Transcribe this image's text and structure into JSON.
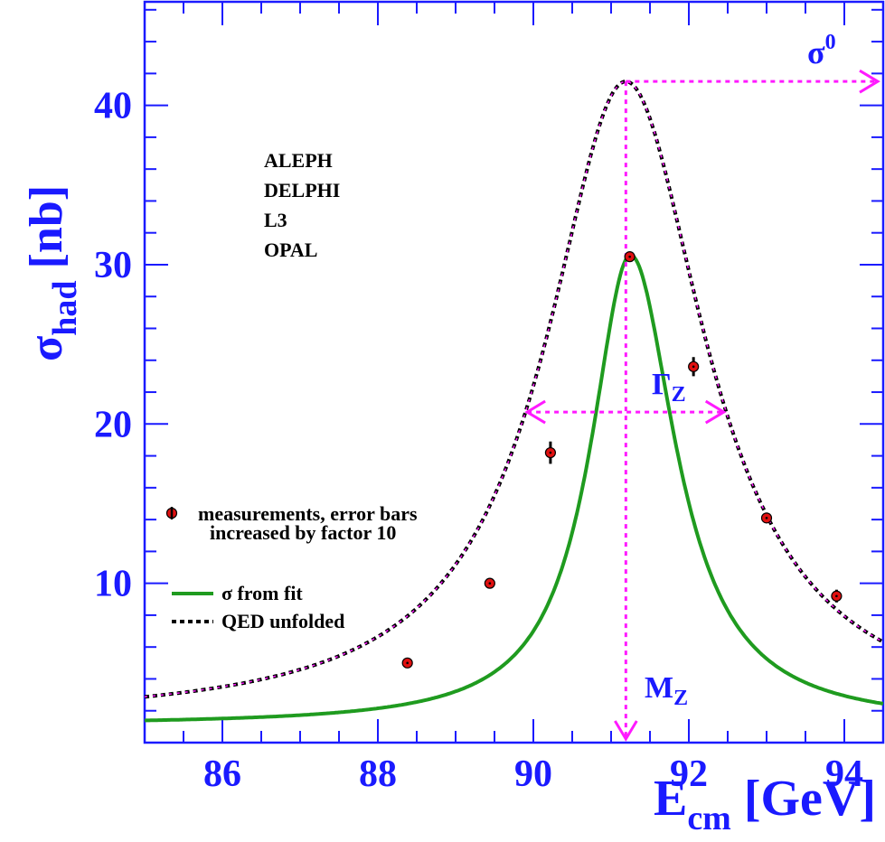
{
  "chart_data": {
    "type": "line",
    "xlabel": {
      "main": "E",
      "sub": "cm",
      "unit": " [GeV]"
    },
    "ylabel": {
      "main": "σ",
      "sub": "had",
      "unit": " [nb]"
    },
    "xlim": [
      85,
      94.5
    ],
    "ylim": [
      0,
      46.5
    ],
    "x_ticks": [
      86,
      88,
      90,
      92,
      94
    ],
    "y_ticks": [
      10,
      20,
      30,
      40
    ],
    "experiments": [
      "ALEPH",
      "DELPHI",
      "L3",
      "OPAL"
    ],
    "measurements": {
      "x": [
        88.38,
        89.44,
        90.22,
        91.24,
        92.06,
        93.0,
        93.9
      ],
      "y": [
        5.0,
        10.0,
        18.2,
        30.5,
        23.6,
        14.1,
        9.2
      ],
      "err": [
        0.14,
        0.16,
        0.7,
        0.2,
        0.6,
        0.2,
        0.4
      ]
    },
    "fit": {
      "name": "σ from fit",
      "color": "#1f9b1f",
      "peak_x": 91.25,
      "peak_y": 30.6,
      "gamma_left": 1.25,
      "gamma_right": 1.42,
      "base": 1.1
    },
    "qed": {
      "name": "QED unfolded",
      "peak_x": 91.19,
      "peak_y": 41.5,
      "gamma": 2.5,
      "base": 1.3
    },
    "legend": {
      "measurements_line1": "measurements, error bars",
      "measurements_line2": "increased by factor 10",
      "fit_label": "σ from fit",
      "qed_label": "QED unfolded"
    },
    "annotations": {
      "sigma0": {
        "main": "σ",
        "sup": "0",
        "y": 41.5
      },
      "gammaZ": {
        "main": "Γ",
        "sub": "Z",
        "y": 20.75,
        "x_left": 89.92,
        "x_right": 92.45
      },
      "mZ": {
        "main": "M",
        "sub": "Z",
        "x": 91.19
      }
    },
    "colors": {
      "axis": "#1a1aff",
      "arrows": "#ff1aff",
      "fit": "#1f9b1f",
      "qed": "#000000",
      "points": "#e01010"
    }
  }
}
